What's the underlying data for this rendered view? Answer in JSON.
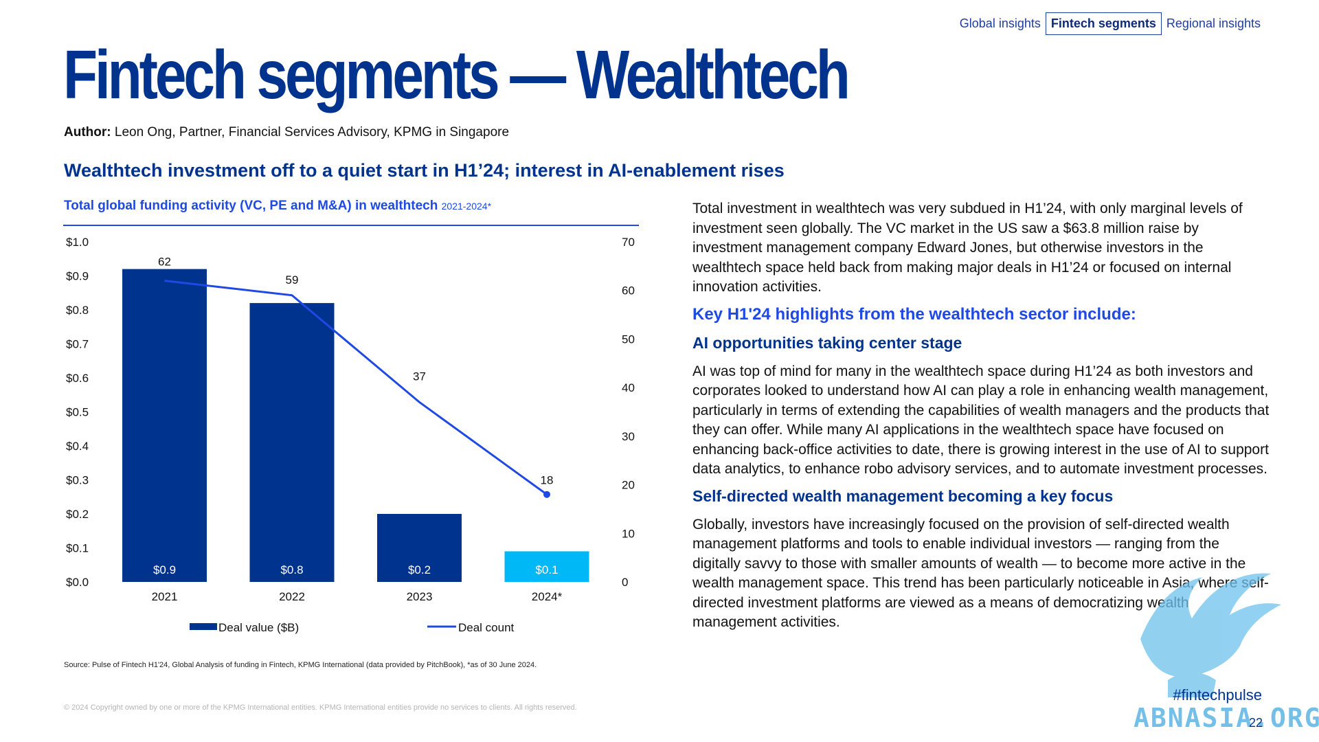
{
  "nav": {
    "items": [
      {
        "label": "Global insights",
        "active": false
      },
      {
        "label": "Fintech segments",
        "active": true
      },
      {
        "label": "Regional insights",
        "active": false
      }
    ]
  },
  "title": "Fintech segments — Wealthtech",
  "author": {
    "label": "Author:",
    "text": "Leon Ong, Partner, Financial Services Advisory, KPMG in Singapore"
  },
  "subtitle": "Wealthtech investment off to a quiet start in H1’24; interest in AI-enablement rises",
  "chart_data": {
    "type": "bar",
    "title": "Total global funding activity (VC, PE and M&A) in wealthtech",
    "title_range": "2021-2024*",
    "categories": [
      "2021",
      "2022",
      "2023",
      "2024*"
    ],
    "series": [
      {
        "name": "Deal value ($B)",
        "type": "bar",
        "axis": "left",
        "values": [
          0.92,
          0.82,
          0.2,
          0.09
        ],
        "labels": [
          "$0.9",
          "$0.8",
          "$0.2",
          "$0.1"
        ],
        "colors": [
          "#00338D",
          "#00338D",
          "#00338D",
          "#00B8F5"
        ]
      },
      {
        "name": "Deal count",
        "type": "line",
        "axis": "right",
        "values": [
          62,
          59,
          37,
          18
        ],
        "color": "#1E49E2"
      }
    ],
    "y_left": {
      "ylim": [
        0,
        1.0
      ],
      "ticks": [
        "$0.0",
        "$0.1",
        "$0.2",
        "$0.3",
        "$0.4",
        "$0.5",
        "$0.6",
        "$0.7",
        "$0.8",
        "$0.9",
        "$1.0"
      ]
    },
    "y_right": {
      "ylim": [
        0,
        70
      ],
      "ticks": [
        "0",
        "10",
        "20",
        "30",
        "40",
        "50",
        "60",
        "70"
      ]
    },
    "legend_position": "bottom",
    "grid": false
  },
  "source": "Source: Pulse of Fintech H1'24, Global Analysis of funding in Fintech, KPMG International (data provided by PitchBook), *as of 30 June 2024.",
  "copyright": "© 2024 Copyright owned by one or more of the KPMG International entities. KPMG International entities provide no services to clients. All rights reserved.",
  "body": {
    "intro": "Total investment in wealthtech was very subdued in H1’24, with only marginal levels of investment seen globally. The VC market in the US saw a $63.8 million raise by investment management company Edward Jones, but otherwise investors in the wealthtech space held back from making major deals in H1’24 or focused on internal innovation activities.",
    "highlights_heading": "Key H1'24 highlights from the wealthtech sector include:",
    "section1_heading": "AI opportunities taking center stage",
    "section1_text": "AI was top of mind for many in the wealthtech space during H1’24 as both investors and corporates looked to understand how AI can play a role in enhancing wealth management, particularly in terms of extending the capabilities of wealth managers and the products that they can offer. While many AI applications in the wealthtech space have focused on enhancing back-office activities to date, there is growing interest in the use of AI to support data analytics, to enhance robo advisory services, and to automate investment processes.",
    "section2_heading": "Self-directed wealth management becoming a key focus",
    "section2_text": "Globally, investors have increasingly focused on the provision of self-directed wealth management platforms and tools to enable individual investors — ranging from the digitally savvy to those with smaller amounts of wealth — to become more active in the wealth management space. This trend has been particularly noticeable in Asia, where self-directed investment platforms are viewed as a means of democratizing wealth management activities."
  },
  "hashtag": "#fintechpulse",
  "page_number": "22",
  "watermark": {
    "text": "ABNASIA.ORG",
    "color": "#5BB4E5"
  },
  "colors": {
    "brand": "#00338D",
    "accent": "#1E49E2",
    "highlight_bar": "#00B8F5"
  }
}
